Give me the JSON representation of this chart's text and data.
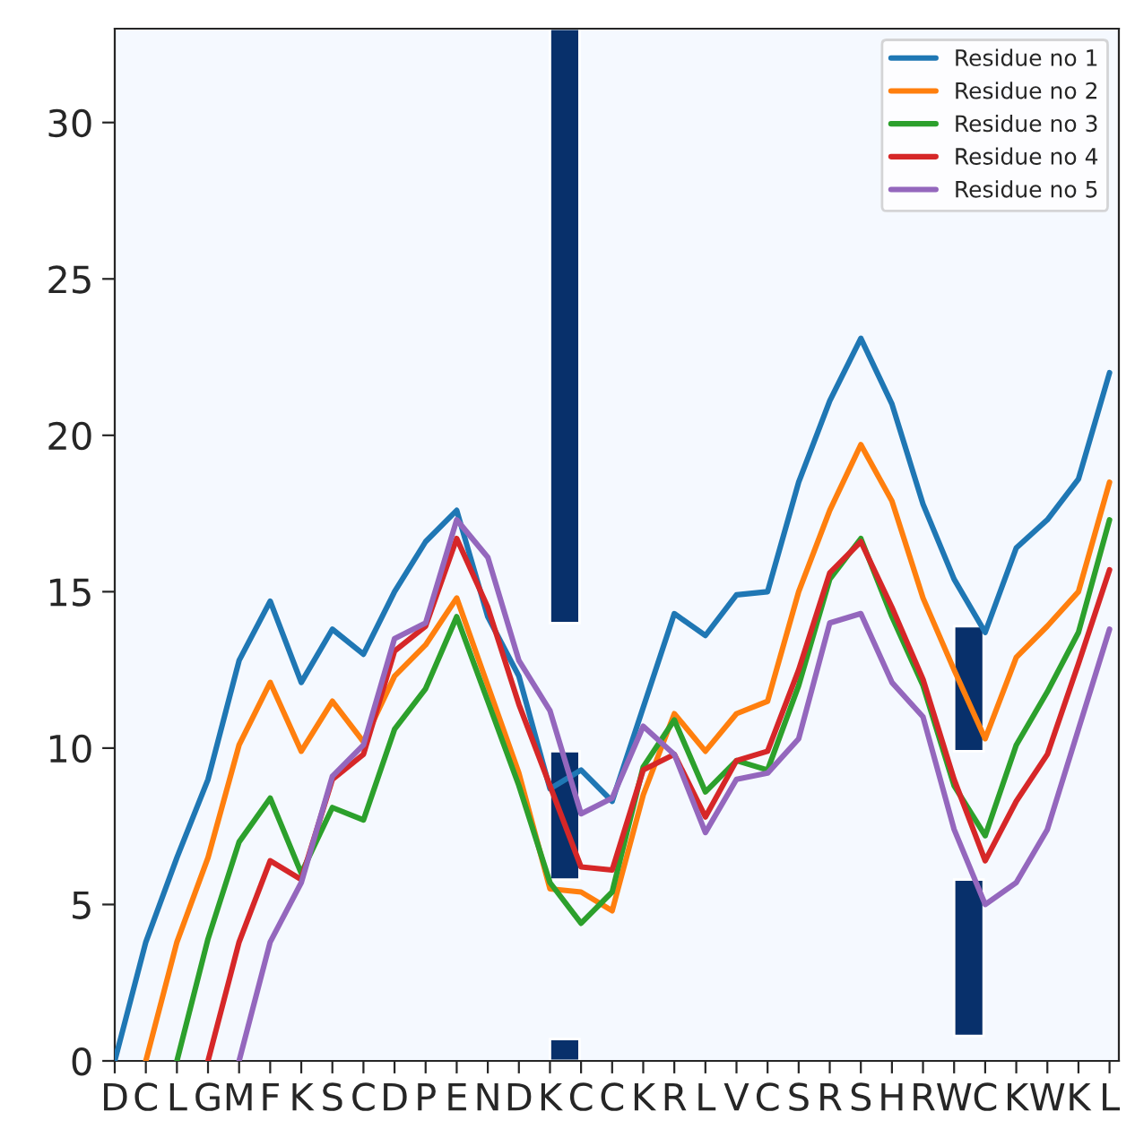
{
  "chart_data": {
    "type": "line",
    "categories": [
      "D",
      "C",
      "L",
      "G",
      "M",
      "F",
      "K",
      "S",
      "C",
      "D",
      "P",
      "E",
      "N",
      "D",
      "K",
      "C",
      "C",
      "K",
      "R",
      "L",
      "V",
      "C",
      "S",
      "R",
      "S",
      "H",
      "R",
      "W",
      "C",
      "K",
      "W",
      "K",
      "L"
    ],
    "series": [
      {
        "name": "Residue no 1",
        "color": "#1f77b4",
        "values": [
          0,
          3.8,
          6.5,
          9.0,
          12.8,
          14.7,
          12.1,
          13.8,
          13.0,
          15.0,
          16.6,
          17.6,
          14.2,
          12.3,
          8.7,
          9.3,
          8.3,
          11.3,
          14.3,
          13.6,
          14.9,
          15.0,
          18.5,
          21.1,
          23.1,
          21.0,
          17.8,
          15.4,
          13.7,
          16.4,
          17.3,
          18.6,
          22.0
        ]
      },
      {
        "name": "Residue no 2",
        "color": "#ff7f0e",
        "values": [
          null,
          0,
          3.8,
          6.5,
          10.1,
          12.1,
          9.9,
          11.5,
          10.2,
          12.3,
          13.3,
          14.8,
          12.0,
          9.2,
          5.5,
          5.4,
          4.8,
          8.5,
          11.1,
          9.9,
          11.1,
          11.5,
          15.0,
          17.6,
          19.7,
          17.9,
          14.8,
          12.5,
          10.3,
          12.9,
          13.9,
          15.0,
          18.5
        ]
      },
      {
        "name": "Residue no 3",
        "color": "#2ca02c",
        "values": [
          null,
          null,
          0,
          3.9,
          7.0,
          8.4,
          6.0,
          8.1,
          7.7,
          10.6,
          11.9,
          14.2,
          11.5,
          8.8,
          5.7,
          4.4,
          5.4,
          9.4,
          10.9,
          8.6,
          9.6,
          9.3,
          12.0,
          15.4,
          16.7,
          14.2,
          12.0,
          8.8,
          7.2,
          10.1,
          11.8,
          13.7,
          17.3
        ]
      },
      {
        "name": "Residue no 4",
        "color": "#d62728",
        "values": [
          null,
          null,
          null,
          0,
          3.8,
          6.4,
          5.8,
          9.0,
          9.8,
          13.1,
          13.9,
          16.7,
          14.5,
          11.4,
          8.8,
          6.2,
          6.1,
          9.3,
          9.8,
          7.8,
          9.6,
          9.9,
          12.5,
          15.6,
          16.6,
          14.5,
          12.2,
          9.0,
          6.4,
          8.3,
          9.8,
          12.7,
          15.7
        ]
      },
      {
        "name": "Residue no 5",
        "color": "#9467bd",
        "values": [
          null,
          null,
          null,
          null,
          0,
          3.8,
          5.7,
          9.1,
          10.1,
          13.5,
          14.0,
          17.3,
          16.1,
          12.8,
          11.2,
          7.9,
          8.4,
          10.7,
          9.8,
          7.3,
          9.0,
          9.2,
          10.3,
          14.0,
          14.3,
          12.1,
          11.0,
          7.4,
          5.0,
          5.7,
          7.4,
          10.6,
          13.8
        ]
      },
      {
        "type": "bar",
        "color": "#08306b",
        "values": [
          null,
          null,
          null,
          null,
          null,
          null,
          null,
          null,
          null,
          null,
          null,
          null,
          null,
          null,
          19,
          null,
          null,
          null,
          null,
          null,
          null,
          null,
          null,
          null,
          null,
          null,
          null,
          4.0,
          null,
          null,
          null,
          null,
          null
        ],
        "base": [
          null,
          null,
          null,
          null,
          null,
          null,
          null,
          null,
          null,
          null,
          null,
          null,
          null,
          null,
          14,
          null,
          null,
          null,
          null,
          null,
          null,
          null,
          null,
          null,
          null,
          null,
          null,
          9.9,
          null,
          null,
          null,
          null,
          null
        ]
      },
      {
        "type": "bar",
        "color": "#08306b",
        "values": [
          null,
          null,
          null,
          null,
          null,
          null,
          null,
          null,
          null,
          null,
          null,
          null,
          null,
          null,
          4.1,
          null,
          null,
          null,
          null,
          null,
          null,
          null,
          null,
          null,
          null,
          null,
          null,
          5.0,
          null,
          null,
          null,
          null,
          null
        ],
        "base": [
          null,
          null,
          null,
          null,
          null,
          null,
          null,
          null,
          null,
          null,
          null,
          null,
          null,
          null,
          5.8,
          null,
          null,
          null,
          null,
          null,
          null,
          null,
          null,
          null,
          null,
          null,
          null,
          0.8,
          null,
          null,
          null,
          null,
          null
        ]
      },
      {
        "type": "bar",
        "color": "#08306b",
        "values": [
          null,
          null,
          null,
          null,
          null,
          null,
          null,
          null,
          null,
          null,
          null,
          null,
          null,
          null,
          0.7,
          null,
          null,
          null,
          null,
          null,
          null,
          null,
          null,
          null,
          null,
          null,
          null,
          null,
          null,
          null,
          null,
          null,
          null
        ],
        "base": [
          null,
          null,
          null,
          null,
          null,
          null,
          null,
          null,
          null,
          null,
          null,
          null,
          null,
          null,
          0,
          null,
          null,
          null,
          null,
          null,
          null,
          null,
          null,
          null,
          null,
          null,
          null,
          null,
          null,
          null,
          null,
          null,
          null
        ]
      }
    ],
    "ylim": [
      0,
      33
    ],
    "yticks": [
      0,
      5,
      10,
      15,
      20,
      25,
      30
    ],
    "grid": false,
    "legend": "top right"
  }
}
